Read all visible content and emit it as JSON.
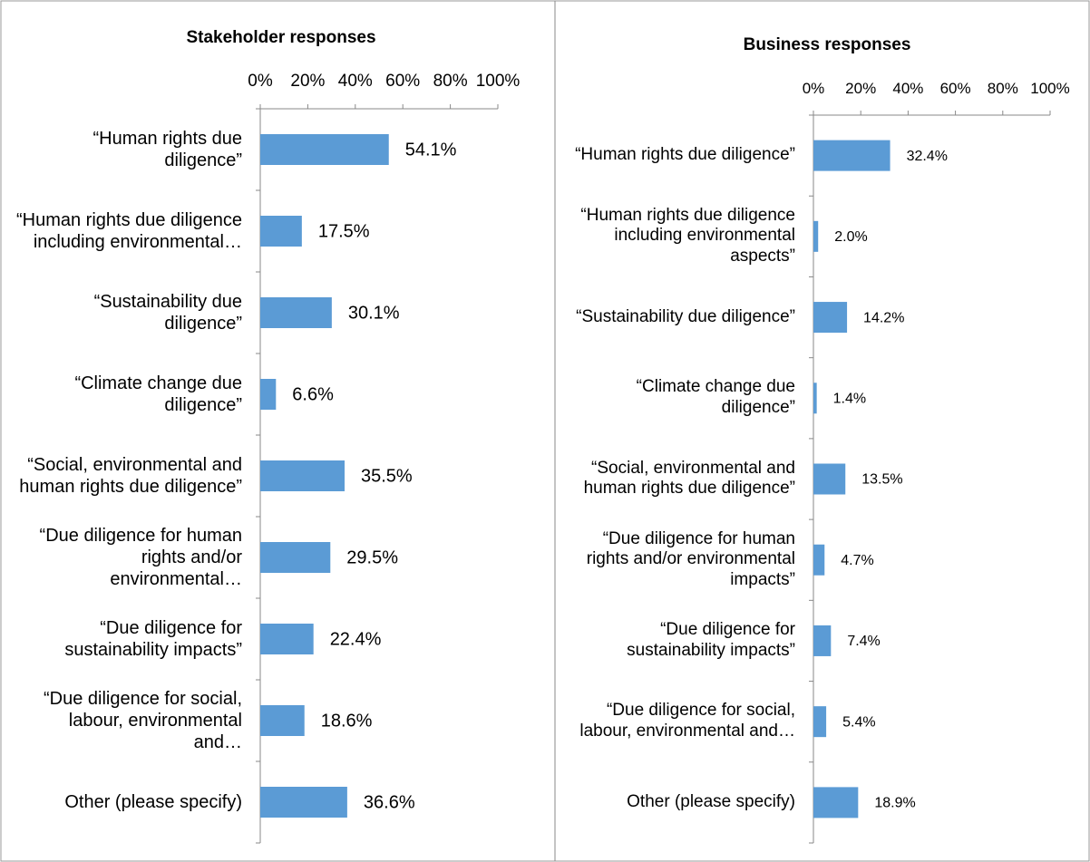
{
  "chart_data": [
    {
      "type": "bar",
      "orientation": "horizontal",
      "title": "Stakeholder responses",
      "categories": [
        "“Human rights due diligence”",
        "“Human rights due diligence including environmental…",
        "“Sustainability due diligence”",
        "“Climate change due diligence”",
        "“Social, environmental and human rights due diligence”",
        "“Due diligence for human rights and/or environmental…",
        "“Due diligence for sustainability impacts”",
        "“Due diligence for social, labour, environmental and…",
        "Other (please specify)"
      ],
      "values": [
        54.1,
        17.5,
        30.1,
        6.6,
        35.5,
        29.5,
        22.4,
        18.6,
        36.6
      ],
      "value_labels": [
        "54.1%",
        "17.5%",
        "30.1%",
        "6.6%",
        "35.5%",
        "29.5%",
        "22.4%",
        "18.6%",
        "36.6%"
      ],
      "color": "#5b9bd5",
      "xlim": [
        0,
        100
      ],
      "xticks": [
        {
          "value": 0,
          "label": "0%"
        },
        {
          "value": 20,
          "label": "20%"
        },
        {
          "value": 40,
          "label": "40%"
        },
        {
          "value": 60,
          "label": "60%"
        },
        {
          "value": 80,
          "label": "80%"
        },
        {
          "value": 100,
          "label": "100%"
        }
      ]
    },
    {
      "type": "bar",
      "orientation": "horizontal",
      "title": "Business responses",
      "categories": [
        "“Human rights due diligence”",
        "“Human rights due diligence including environmental aspects”",
        "“Sustainability due diligence”",
        "“Climate change due diligence”",
        "“Social, environmental and human rights due diligence”",
        "“Due diligence for human rights and/or environmental impacts”",
        "“Due diligence for sustainability impacts”",
        "“Due diligence for social, labour, environmental and…",
        "Other (please specify)"
      ],
      "values": [
        32.4,
        2.0,
        14.2,
        1.4,
        13.5,
        4.7,
        7.4,
        5.4,
        18.9
      ],
      "value_labels": [
        "32.4%",
        "2.0%",
        "14.2%",
        "1.4%",
        "13.5%",
        "4.7%",
        "7.4%",
        "5.4%",
        "18.9%"
      ],
      "color": "#5b9bd5",
      "xlim": [
        0,
        100
      ],
      "xticks": [
        {
          "value": 0,
          "label": "0%"
        },
        {
          "value": 20,
          "label": "20%"
        },
        {
          "value": 40,
          "label": "40%"
        },
        {
          "value": 60,
          "label": "60%"
        },
        {
          "value": 80,
          "label": "80%"
        },
        {
          "value": 100,
          "label": "100%"
        }
      ]
    }
  ]
}
